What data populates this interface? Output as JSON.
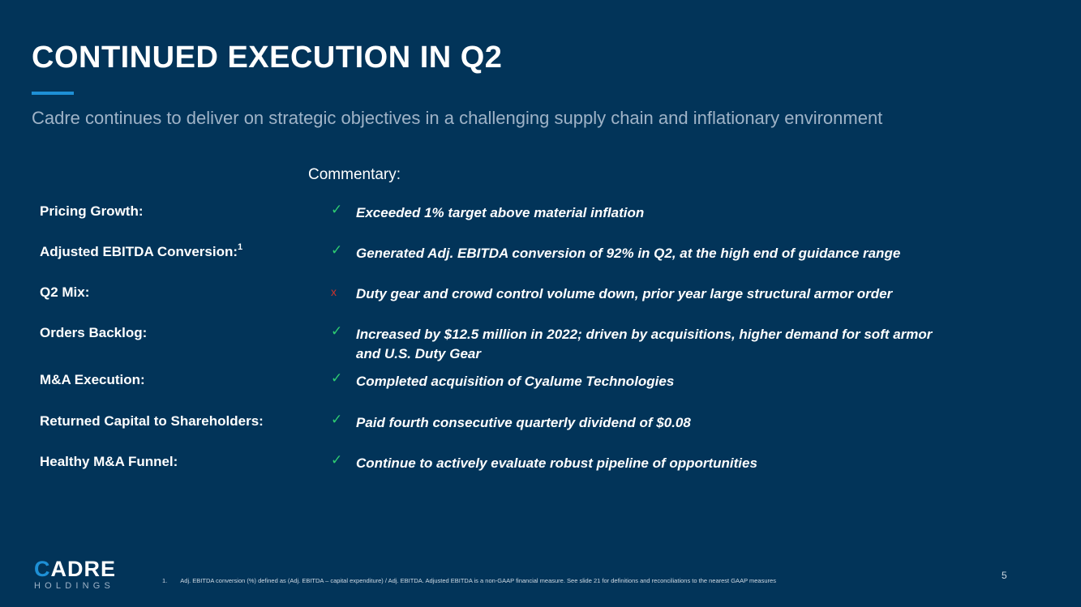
{
  "slide": {
    "title": "CONTINUED EXECUTION IN Q2",
    "subtitle": "Cadre continues to deliver on strategic objectives in a challenging supply chain and inflationary environment",
    "commentary_label": "Commentary:",
    "page_number": "5"
  },
  "rows": [
    {
      "label": "Pricing Growth:",
      "sup": "",
      "mark": "✓",
      "status": "positive",
      "text": "Exceeded 1% target above material inflation"
    },
    {
      "label": "Adjusted EBITDA Conversion:",
      "sup": "1",
      "mark": "✓",
      "status": "positive",
      "text": "Generated Adj. EBITDA conversion of 92% in Q2, at the high end of guidance range"
    },
    {
      "label": "Q2 Mix:",
      "sup": "",
      "mark": "x",
      "status": "negative",
      "text": "Duty gear and crowd control volume down, prior year large structural armor order"
    },
    {
      "label": "Orders Backlog:",
      "sup": "",
      "mark": "✓",
      "status": "positive",
      "text": "Increased by $12.5 million in 2022;  driven by acquisitions, higher demand for soft armor and U.S. Duty Gear"
    },
    {
      "label": "M&A Execution:",
      "sup": "",
      "mark": "✓",
      "status": "positive",
      "text": "Completed acquisition of Cyalume Technologies"
    },
    {
      "label": "Returned Capital to Shareholders:",
      "sup": "",
      "mark": "✓",
      "status": "positive",
      "text": "Paid fourth consecutive quarterly dividend of $0.08"
    },
    {
      "label": "Healthy M&A Funnel:",
      "sup": "",
      "mark": "✓",
      "status": "positive",
      "text": "Continue to actively evaluate robust pipeline of opportunities"
    }
  ],
  "logo": {
    "brand_mark": "C",
    "brand_rest": "ADRE",
    "sub": "HOLDINGS"
  },
  "footnote": {
    "number": "1.",
    "text": "Adj. EBITDA conversion (%) defined as (Adj. EBITDA – capital expenditure) / Adj. EBITDA. Adjusted EBITDA is a non-GAAP financial measure. See slide 21 for definitions and reconciliations to the nearest GAAP measures"
  },
  "colors": {
    "background": "#023459",
    "accent": "#1e90d6",
    "check": "#2ecc71",
    "cross": "#d0332c"
  }
}
